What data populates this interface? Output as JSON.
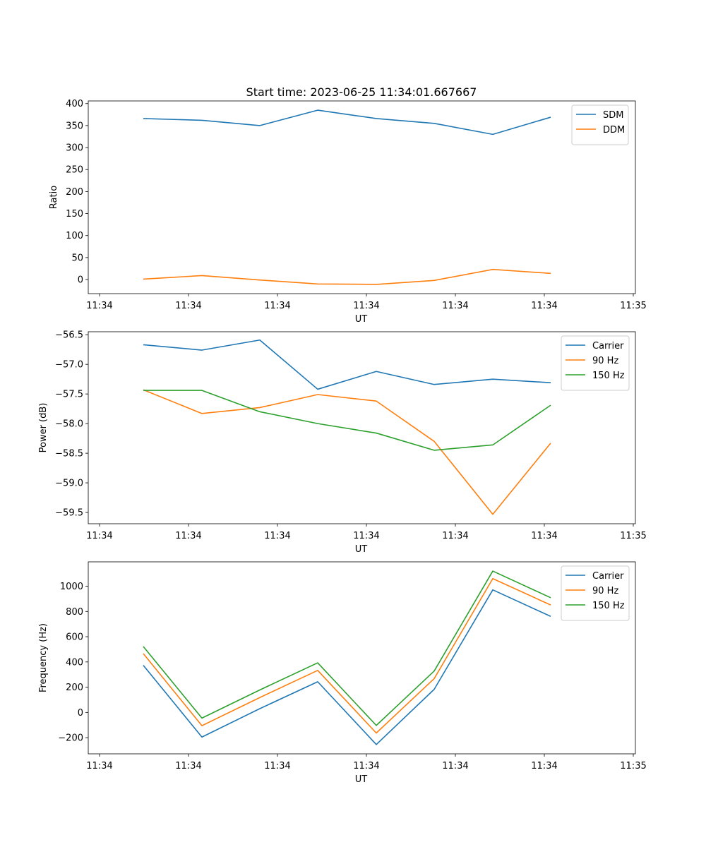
{
  "figure": {
    "title": "Start time: 2023-06-25 11:34:01.667667"
  },
  "chart_data": [
    {
      "type": "line",
      "xlabel": "UT",
      "ylabel": "Ratio",
      "x_tick_labels": [
        "11:34",
        "11:34",
        "11:34",
        "11:34",
        "11:34",
        "11:34",
        "11:35"
      ],
      "ylim": [
        -32,
        406
      ],
      "yticks": [
        0,
        50,
        100,
        150,
        200,
        250,
        300,
        350,
        400
      ],
      "legend": "top-right",
      "series": [
        {
          "name": "SDM",
          "color": "#1f77b4",
          "values": [
            366,
            362,
            350,
            385,
            366,
            355,
            330,
            369
          ]
        },
        {
          "name": "DDM",
          "color": "#ff7f0e",
          "values": [
            1,
            9,
            -1,
            -10,
            -11,
            -2,
            23,
            14
          ]
        }
      ]
    },
    {
      "type": "line",
      "xlabel": "UT",
      "ylabel": "Power (dB)",
      "x_tick_labels": [
        "11:34",
        "11:34",
        "11:34",
        "11:34",
        "11:34",
        "11:34",
        "11:35"
      ],
      "ylim": [
        -59.69,
        -56.45
      ],
      "yticks": [
        -59.5,
        -59.0,
        -58.5,
        -58.0,
        -57.5,
        -57.0,
        -56.5
      ],
      "ytick_labels": [
        "−59.5",
        "−59.0",
        "−58.5",
        "−58.0",
        "−57.5",
        "−57.0",
        "−56.5"
      ],
      "legend": "top-right",
      "series": [
        {
          "name": "Carrier",
          "color": "#1f77b4",
          "values": [
            -56.67,
            -56.76,
            -56.59,
            -57.42,
            -57.12,
            -57.34,
            -57.25,
            -57.31
          ]
        },
        {
          "name": "90 Hz",
          "color": "#ff7f0e",
          "values": [
            -57.43,
            -57.83,
            -57.73,
            -57.51,
            -57.62,
            -58.3,
            -59.53,
            -58.33
          ]
        },
        {
          "name": "150 Hz",
          "color": "#2ca02c",
          "values": [
            -57.44,
            -57.44,
            -57.8,
            -58.0,
            -58.16,
            -58.45,
            -58.36,
            -57.69
          ]
        }
      ]
    },
    {
      "type": "line",
      "xlabel": "UT",
      "ylabel": "Frequency (Hz)",
      "x_tick_labels": [
        "11:34",
        "11:34",
        "11:34",
        "11:34",
        "11:34",
        "11:34",
        "11:35"
      ],
      "ylim": [
        -328,
        1193
      ],
      "yticks": [
        -200,
        0,
        200,
        400,
        600,
        800,
        1000
      ],
      "ytick_labels": [
        "−200",
        "0",
        "200",
        "400",
        "600",
        "800",
        "1000"
      ],
      "legend": "top-right",
      "series": [
        {
          "name": "Carrier",
          "color": "#1f77b4",
          "values": [
            373,
            -195,
            30,
            243,
            -254,
            183,
            971,
            761
          ]
        },
        {
          "name": "90 Hz",
          "color": "#ff7f0e",
          "values": [
            466,
            -105,
            118,
            333,
            -163,
            268,
            1060,
            851
          ]
        },
        {
          "name": "150 Hz",
          "color": "#2ca02c",
          "values": [
            522,
            -45,
            178,
            393,
            -103,
            328,
            1120,
            909
          ]
        }
      ]
    }
  ]
}
